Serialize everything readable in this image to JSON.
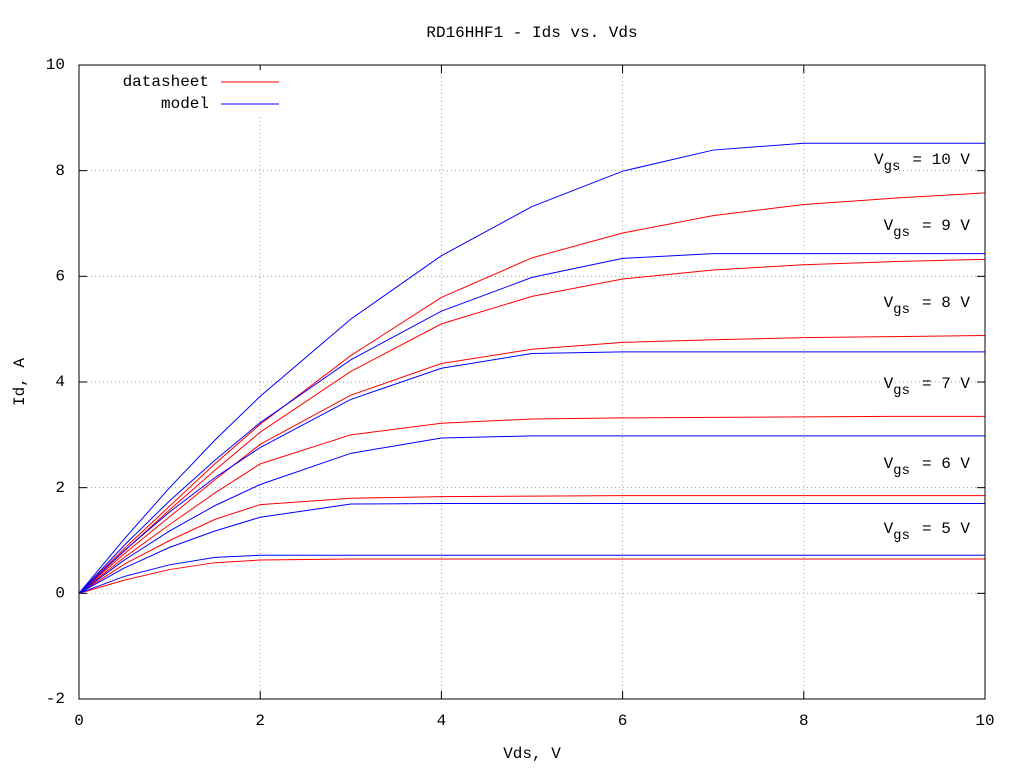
{
  "chart_data": {
    "type": "line",
    "title": "RD16HHF1 - Ids vs. Vds",
    "x_label": "Vds, V",
    "y_label": "Id, A",
    "xlim": [
      0,
      10
    ],
    "ylim": [
      -2,
      10
    ],
    "xticks": [
      0,
      2,
      4,
      6,
      8,
      10
    ],
    "yticks": [
      -2,
      0,
      2,
      4,
      6,
      8,
      10
    ],
    "grid": true,
    "legend": "top-left",
    "x": [
      0,
      0.5,
      1,
      1.5,
      2,
      3,
      4,
      5,
      6,
      7,
      8,
      9,
      10
    ],
    "series": [
      {
        "name": "datasheet",
        "color": "#ff0000",
        "curves": [
          [
            0,
            0.85,
            1.65,
            2.45,
            3.2,
            4.5,
            5.6,
            6.35,
            6.82,
            7.15,
            7.36,
            7.48,
            7.58
          ],
          [
            0,
            0.8,
            1.58,
            2.33,
            3.05,
            4.2,
            5.1,
            5.62,
            5.95,
            6.12,
            6.22,
            6.28,
            6.32
          ],
          [
            0,
            0.75,
            1.45,
            2.15,
            2.82,
            3.75,
            4.35,
            4.62,
            4.75,
            4.8,
            4.84,
            4.86,
            4.88
          ],
          [
            0,
            0.68,
            1.3,
            1.9,
            2.45,
            3.0,
            3.22,
            3.3,
            3.32,
            3.33,
            3.34,
            3.35,
            3.35
          ],
          [
            0,
            0.55,
            1.0,
            1.4,
            1.68,
            1.8,
            1.83,
            1.84,
            1.85,
            1.85,
            1.85,
            1.85,
            1.85
          ],
          [
            0,
            0.25,
            0.45,
            0.58,
            0.63,
            0.65,
            0.65,
            0.65,
            0.65,
            0.65,
            0.65,
            0.65,
            0.65
          ]
        ]
      },
      {
        "name": "model",
        "color": "#0000ff",
        "curves": [
          [
            0,
            1.03,
            2.0,
            2.9,
            3.73,
            5.19,
            6.39,
            7.32,
            7.99,
            8.39,
            8.52,
            8.52,
            8.52
          ],
          [
            0,
            0.91,
            1.75,
            2.52,
            3.23,
            4.42,
            5.34,
            5.98,
            6.34,
            6.43,
            6.43,
            6.43,
            6.43
          ],
          [
            0,
            0.81,
            1.54,
            2.19,
            2.76,
            3.67,
            4.26,
            4.54,
            4.57,
            4.57,
            4.57,
            4.57,
            4.57
          ],
          [
            0,
            0.63,
            1.18,
            1.66,
            2.06,
            2.65,
            2.94,
            2.98,
            2.98,
            2.98,
            2.98,
            2.98,
            2.98
          ],
          [
            0,
            0.48,
            0.87,
            1.18,
            1.44,
            1.69,
            1.7,
            1.7,
            1.7,
            1.7,
            1.7,
            1.7,
            1.7
          ],
          [
            0,
            0.32,
            0.54,
            0.68,
            0.72,
            0.72,
            0.72,
            0.72,
            0.72,
            0.72,
            0.72,
            0.72,
            0.72
          ]
        ]
      }
    ],
    "annotations": [
      {
        "symbol": "V",
        "subscript": "gs",
        "text": "= 10 V"
      },
      {
        "symbol": "V",
        "subscript": "gs",
        "text": "= 9 V"
      },
      {
        "symbol": "V",
        "subscript": "gs",
        "text": "= 8 V"
      },
      {
        "symbol": "V",
        "subscript": "gs",
        "text": "= 7 V"
      },
      {
        "symbol": "V",
        "subscript": "gs",
        "text": "= 6 V"
      },
      {
        "symbol": "V",
        "subscript": "gs",
        "text": "= 5 V"
      }
    ]
  }
}
